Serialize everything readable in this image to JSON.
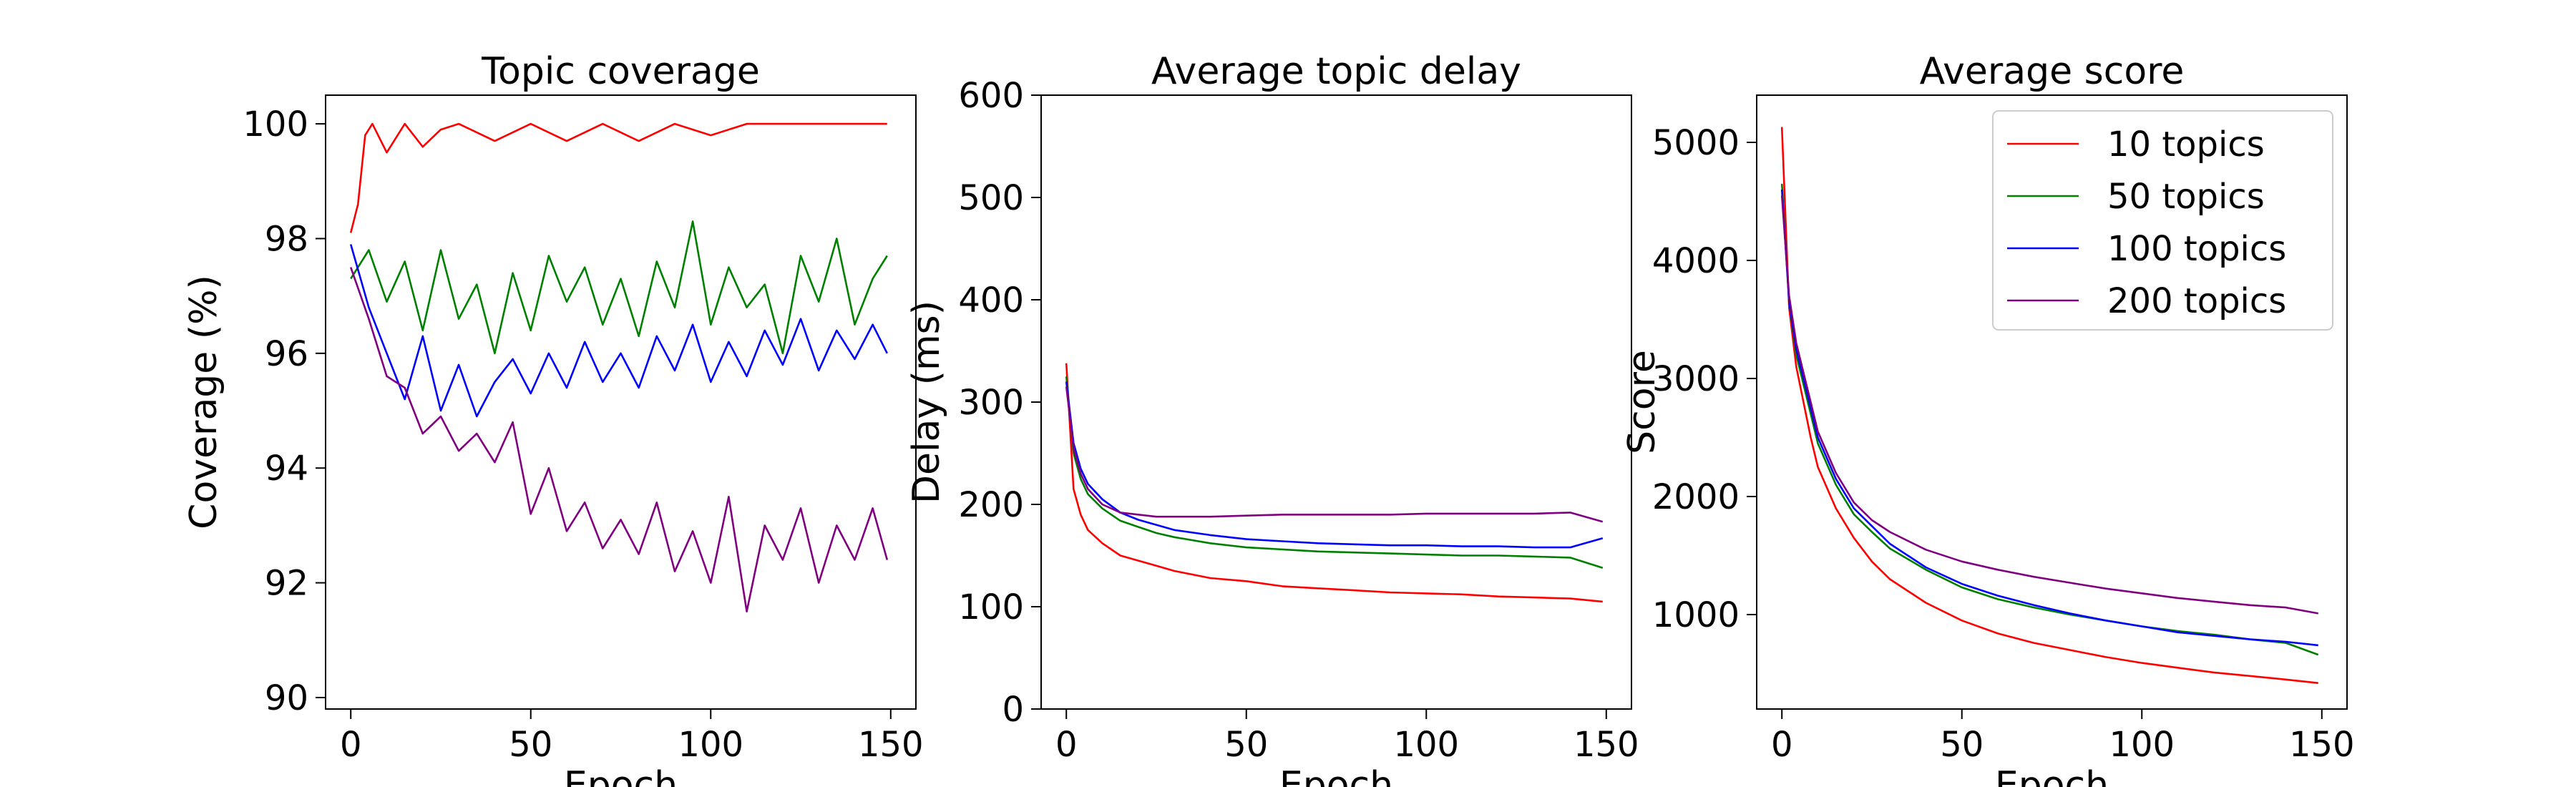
{
  "chart_data": [
    {
      "type": "line",
      "title": "Topic coverage",
      "xlabel": "Epoch",
      "ylabel": "Coverage (%)",
      "xlim": [
        -7,
        157
      ],
      "ylim": [
        89.8,
        100.5
      ],
      "xticks": [
        0,
        50,
        100,
        150
      ],
      "yticks": [
        90,
        92,
        94,
        96,
        98,
        100
      ],
      "legend": null,
      "series": [
        {
          "name": "10 topics",
          "color": "#ff0000",
          "x": [
            0,
            2,
            4,
            6,
            10,
            15,
            20,
            25,
            30,
            40,
            50,
            60,
            70,
            80,
            90,
            100,
            110,
            120,
            130,
            140,
            149
          ],
          "y": [
            98.1,
            98.6,
            99.8,
            100,
            99.5,
            100,
            99.6,
            99.9,
            100,
            99.7,
            100,
            99.7,
            100,
            99.7,
            100,
            99.8,
            100,
            100,
            100,
            100,
            100
          ]
        },
        {
          "name": "50 topics",
          "color": "#008000",
          "x": [
            0,
            5,
            10,
            15,
            20,
            25,
            30,
            35,
            40,
            45,
            50,
            55,
            60,
            65,
            70,
            75,
            80,
            85,
            90,
            95,
            100,
            105,
            110,
            115,
            120,
            125,
            130,
            135,
            140,
            145,
            149
          ],
          "y": [
            97.3,
            97.8,
            96.9,
            97.6,
            96.4,
            97.8,
            96.6,
            97.2,
            96.0,
            97.4,
            96.4,
            97.7,
            96.9,
            97.5,
            96.5,
            97.3,
            96.3,
            97.6,
            96.8,
            98.3,
            96.5,
            97.5,
            96.8,
            97.2,
            96.0,
            97.7,
            96.9,
            98.0,
            96.5,
            97.3,
            97.7
          ]
        },
        {
          "name": "100 topics",
          "color": "#0000ff",
          "x": [
            0,
            5,
            10,
            15,
            20,
            25,
            30,
            35,
            40,
            45,
            50,
            55,
            60,
            65,
            70,
            75,
            80,
            85,
            90,
            95,
            100,
            105,
            110,
            115,
            120,
            125,
            130,
            135,
            140,
            145,
            149
          ],
          "y": [
            97.9,
            96.8,
            96.0,
            95.2,
            96.3,
            95.0,
            95.8,
            94.9,
            95.5,
            95.9,
            95.3,
            96.0,
            95.4,
            96.2,
            95.5,
            96.0,
            95.4,
            96.3,
            95.7,
            96.5,
            95.5,
            96.2,
            95.6,
            96.4,
            95.8,
            96.6,
            95.7,
            96.4,
            95.9,
            96.5,
            96.0
          ]
        },
        {
          "name": "200 topics",
          "color": "#800080",
          "x": [
            0,
            5,
            10,
            15,
            20,
            25,
            30,
            35,
            40,
            45,
            50,
            55,
            60,
            65,
            70,
            75,
            80,
            85,
            90,
            95,
            100,
            105,
            110,
            115,
            120,
            125,
            130,
            135,
            140,
            145,
            149
          ],
          "y": [
            97.5,
            96.6,
            95.6,
            95.4,
            94.6,
            94.9,
            94.3,
            94.6,
            94.1,
            94.8,
            93.2,
            94.0,
            92.9,
            93.4,
            92.6,
            93.1,
            92.5,
            93.4,
            92.2,
            92.9,
            92.0,
            93.5,
            91.5,
            93.0,
            92.4,
            93.3,
            92.0,
            93.0,
            92.4,
            93.3,
            92.4
          ]
        }
      ]
    },
    {
      "type": "line",
      "title": "Average topic delay",
      "xlabel": "Epoch",
      "ylabel": "Delay (ms)",
      "xlim": [
        -7,
        157
      ],
      "ylim": [
        0,
        600
      ],
      "xticks": [
        0,
        50,
        100,
        150
      ],
      "yticks": [
        0,
        100,
        200,
        300,
        400,
        500,
        600
      ],
      "legend": null,
      "series": [
        {
          "name": "10 topics",
          "color": "#ff0000",
          "x": [
            0,
            2,
            4,
            6,
            10,
            15,
            20,
            25,
            30,
            40,
            50,
            60,
            70,
            80,
            90,
            100,
            110,
            120,
            130,
            140,
            149
          ],
          "y": [
            338,
            215,
            190,
            175,
            162,
            150,
            145,
            140,
            135,
            128,
            125,
            120,
            118,
            116,
            114,
            113,
            112,
            110,
            109,
            108,
            105
          ]
        },
        {
          "name": "50 topics",
          "color": "#008000",
          "x": [
            0,
            2,
            4,
            6,
            10,
            15,
            20,
            25,
            30,
            40,
            50,
            60,
            70,
            80,
            90,
            100,
            110,
            120,
            130,
            140,
            149
          ],
          "y": [
            325,
            250,
            225,
            210,
            196,
            184,
            178,
            172,
            168,
            162,
            158,
            156,
            154,
            153,
            152,
            151,
            150,
            150,
            149,
            148,
            138
          ]
        },
        {
          "name": "100 topics",
          "color": "#0000ff",
          "x": [
            0,
            2,
            4,
            6,
            10,
            15,
            20,
            25,
            30,
            40,
            50,
            60,
            70,
            80,
            90,
            100,
            110,
            120,
            130,
            140,
            149
          ],
          "y": [
            320,
            260,
            235,
            220,
            205,
            192,
            185,
            180,
            175,
            170,
            166,
            164,
            162,
            161,
            160,
            160,
            159,
            159,
            158,
            158,
            167
          ]
        },
        {
          "name": "200 topics",
          "color": "#800080",
          "x": [
            0,
            2,
            4,
            6,
            10,
            15,
            20,
            25,
            30,
            40,
            50,
            60,
            70,
            80,
            90,
            100,
            110,
            120,
            130,
            140,
            149
          ],
          "y": [
            315,
            255,
            230,
            215,
            200,
            192,
            190,
            188,
            188,
            188,
            189,
            190,
            190,
            190,
            190,
            191,
            191,
            191,
            191,
            192,
            183
          ]
        }
      ]
    },
    {
      "type": "line",
      "title": "Average score",
      "xlabel": "Epoch",
      "ylabel": "Score",
      "xlim": [
        -7,
        157
      ],
      "ylim": [
        200,
        5400
      ],
      "xticks": [
        0,
        50,
        100,
        150
      ],
      "yticks": [
        1000,
        2000,
        3000,
        4000,
        5000
      ],
      "legend": "top-right",
      "series": [
        {
          "name": "10 topics",
          "color": "#ff0000",
          "x": [
            0,
            2,
            4,
            6,
            8,
            10,
            15,
            20,
            25,
            30,
            40,
            50,
            60,
            70,
            80,
            90,
            100,
            110,
            120,
            130,
            140,
            149
          ],
          "y": [
            5130,
            3600,
            3100,
            2800,
            2500,
            2250,
            1900,
            1650,
            1450,
            1300,
            1100,
            950,
            840,
            760,
            700,
            640,
            590,
            550,
            510,
            480,
            450,
            420
          ]
        },
        {
          "name": "50 topics",
          "color": "#008000",
          "x": [
            0,
            2,
            4,
            6,
            8,
            10,
            15,
            20,
            25,
            30,
            40,
            50,
            60,
            70,
            80,
            90,
            100,
            110,
            120,
            130,
            140,
            149
          ],
          "y": [
            4650,
            3650,
            3200,
            2950,
            2700,
            2450,
            2100,
            1850,
            1700,
            1560,
            1380,
            1230,
            1130,
            1060,
            1000,
            950,
            900,
            860,
            830,
            790,
            760,
            660
          ]
        },
        {
          "name": "100 topics",
          "color": "#0000ff",
          "x": [
            0,
            2,
            4,
            6,
            8,
            10,
            15,
            20,
            25,
            30,
            40,
            50,
            60,
            70,
            80,
            90,
            100,
            110,
            120,
            130,
            140,
            149
          ],
          "y": [
            4600,
            3650,
            3250,
            3000,
            2750,
            2500,
            2150,
            1900,
            1750,
            1600,
            1400,
            1260,
            1160,
            1080,
            1010,
            950,
            900,
            850,
            820,
            790,
            770,
            740
          ]
        },
        {
          "name": "200 topics",
          "color": "#800080",
          "x": [
            0,
            2,
            4,
            6,
            8,
            10,
            15,
            20,
            25,
            30,
            40,
            50,
            60,
            70,
            80,
            90,
            100,
            110,
            120,
            130,
            140,
            149
          ],
          "y": [
            4550,
            3700,
            3300,
            3050,
            2800,
            2550,
            2200,
            1950,
            1800,
            1700,
            1550,
            1450,
            1380,
            1320,
            1270,
            1220,
            1180,
            1140,
            1110,
            1080,
            1060,
            1010
          ]
        }
      ]
    }
  ]
}
